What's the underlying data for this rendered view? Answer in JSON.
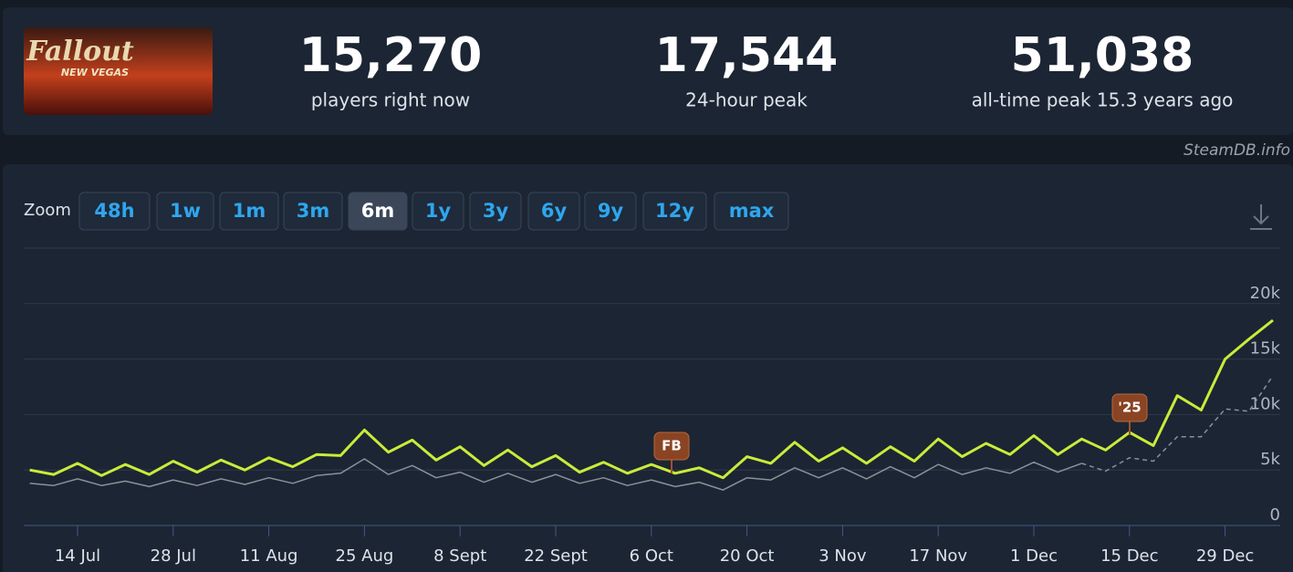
{
  "header": {
    "logo": {
      "title": "Fallout",
      "subtitle": "NEW VEGAS"
    },
    "stats": [
      {
        "value": "15,270",
        "label": "players right now"
      },
      {
        "value": "17,544",
        "label": "24-hour peak"
      },
      {
        "value": "51,038",
        "label": "all-time peak 15.3 years ago"
      }
    ],
    "credit": "SteamDB.info"
  },
  "zoom": {
    "label": "Zoom",
    "options": [
      "48h",
      "1w",
      "1m",
      "3m",
      "6m",
      "1y",
      "3y",
      "6y",
      "9y",
      "12y",
      "max"
    ],
    "active": 4
  },
  "chart_data": {
    "type": "line",
    "categories": [
      null,
      null,
      "14 Jul",
      null,
      null,
      null,
      "28 Jul",
      null,
      null,
      null,
      "11 Aug",
      null,
      null,
      null,
      "25 Aug",
      null,
      null,
      null,
      "8 Sept",
      null,
      null,
      null,
      "22 Sept",
      null,
      null,
      null,
      "6 Oct",
      null,
      null,
      null,
      "20 Oct",
      null,
      null,
      null,
      "3 Nov",
      null,
      null,
      null,
      "17 Nov",
      null,
      null,
      null,
      "1 Dec",
      null,
      null,
      null,
      "15 Dec",
      null,
      null,
      null,
      "29 Dec",
      null,
      null
    ],
    "series": [
      {
        "color": "#c9ec3a",
        "dash": false,
        "values": [
          5000,
          4600,
          5600,
          4500,
          5500,
          4600,
          5800,
          4800,
          5900,
          5000,
          6100,
          5300,
          6400,
          6300,
          8600,
          6600,
          7700,
          5900,
          7100,
          5400,
          6800,
          5300,
          6300,
          4800,
          5700,
          4700,
          5500,
          4700,
          5200,
          4300,
          6200,
          5600,
          7500,
          5800,
          7000,
          5600,
          7100,
          5800,
          7800,
          6200,
          7400,
          6400,
          8100,
          6400,
          7800,
          6800,
          8400,
          7200,
          11700,
          10400,
          15000,
          16800,
          18500
        ]
      },
      {
        "color": "#8b9099",
        "dash": false,
        "values": [
          3800,
          3600,
          4200,
          3600,
          4000,
          3500,
          4100,
          3600,
          4200,
          3700,
          4300,
          3800,
          4500,
          4700,
          6000,
          4600,
          5400,
          4300,
          4800,
          3900,
          4700,
          3900,
          4600,
          3800,
          4300,
          3600,
          4100,
          3500,
          3900,
          3200,
          4300,
          4100,
          5200,
          4300,
          5200,
          4200,
          5300,
          4300,
          5500,
          4600,
          5200,
          4700,
          5700,
          4800,
          5600,
          null,
          null,
          null,
          null,
          null,
          null,
          null,
          null
        ]
      },
      {
        "color": "#8b9099",
        "dash": true,
        "values": [
          null,
          null,
          null,
          null,
          null,
          null,
          null,
          null,
          null,
          null,
          null,
          null,
          null,
          null,
          null,
          null,
          null,
          null,
          null,
          null,
          null,
          null,
          null,
          null,
          null,
          null,
          null,
          null,
          null,
          null,
          null,
          null,
          null,
          null,
          null,
          null,
          null,
          null,
          null,
          null,
          null,
          null,
          null,
          null,
          5600,
          4900,
          6100,
          5800,
          8000,
          8000,
          10500,
          10300,
          13500
        ]
      }
    ],
    "ylim": [
      0,
      25000
    ],
    "yticks": [
      0,
      {
        "value": 5000,
        "label": "5k"
      },
      {
        "value": 10000,
        "label": "10k"
      },
      {
        "value": 15000,
        "label": "15k"
      },
      {
        "value": 20000,
        "label": "20k"
      }
    ],
    "grid": true,
    "annotations": [
      "FB",
      "'25"
    ]
  }
}
